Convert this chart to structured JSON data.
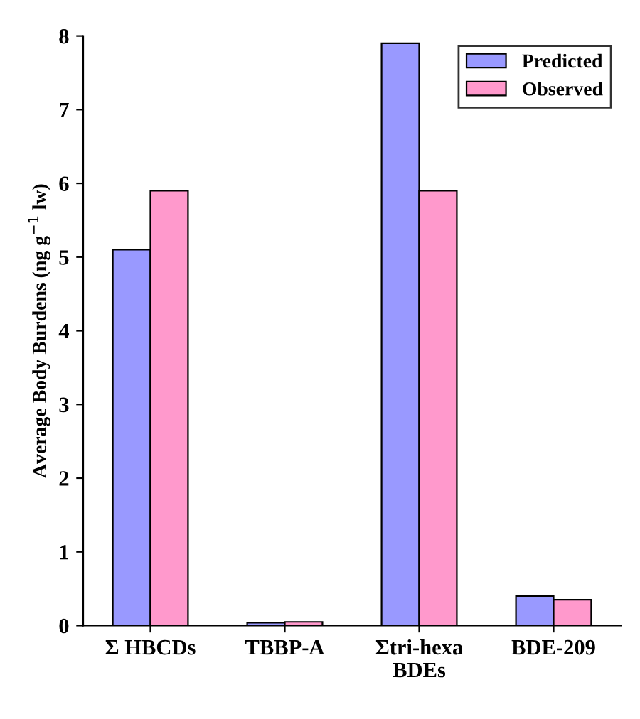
{
  "chart_data": {
    "type": "bar",
    "ylabel": "Average Body Burdens (ng g$^{−1}$ lw)",
    "categories": [
      "Σ HBCDs",
      "TBBP-A",
      "Σtri-hexa\nBDEs",
      "BDE-209"
    ],
    "series": [
      {
        "name": "Predicted",
        "color": "#9999ff",
        "values": [
          5.1,
          0.04,
          7.9,
          0.4
        ]
      },
      {
        "name": "Observed",
        "color": "#ff99cc",
        "values": [
          5.9,
          0.05,
          5.9,
          0.35
        ]
      }
    ],
    "ylim": [
      0,
      8
    ],
    "yticks": [
      0,
      1,
      2,
      3,
      4,
      5,
      6,
      7,
      8
    ],
    "legend": "top right"
  }
}
